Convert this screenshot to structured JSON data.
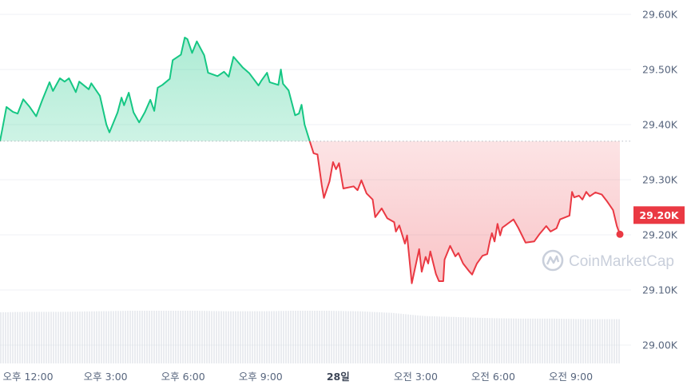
{
  "chart_data": {
    "type": "line",
    "title": "",
    "xlabel": "",
    "ylabel": "",
    "watermark": "CoinMarketCap",
    "reference_price": 29370,
    "current_price_label": "29.20K",
    "colors": {
      "up": "#16c784",
      "down": "#ea3943",
      "grid": "#eff2f5",
      "axis_text": "#58667e",
      "volume": "#d6dae1"
    },
    "grid": true,
    "ylim": [
      28990,
      29615
    ],
    "y_ticks": [
      {
        "value": 29600,
        "label": "29.60K"
      },
      {
        "value": 29500,
        "label": "29.50K"
      },
      {
        "value": 29400,
        "label": "29.40K"
      },
      {
        "value": 29300,
        "label": "29.30K"
      },
      {
        "value": 29200,
        "label": "29.20K"
      },
      {
        "value": 29100,
        "label": "29.10K"
      },
      {
        "value": 29000,
        "label": "29.00K"
      }
    ],
    "x_ticks": [
      {
        "time": "12:00",
        "label": "오후 12:00"
      },
      {
        "time": "15:00",
        "label": "오후 3:00"
      },
      {
        "time": "18:00",
        "label": "오후 6:00"
      },
      {
        "time": "21:00",
        "label": "오후 9:00"
      },
      {
        "time": "24:00",
        "label": "28일",
        "bold": true
      },
      {
        "time": "27:00",
        "label": "오전 3:00"
      },
      {
        "time": "30:00",
        "label": "오전 6:00"
      },
      {
        "time": "33:00",
        "label": "오전 9:00"
      }
    ],
    "series": [
      {
        "points": [
          [
            "10:55",
            29370
          ],
          [
            "11:01",
            29394
          ],
          [
            "11:10",
            29432
          ],
          [
            "11:25",
            29423
          ],
          [
            "11:36",
            29420
          ],
          [
            "11:49",
            29446
          ],
          [
            "12:04",
            29432
          ],
          [
            "12:19",
            29415
          ],
          [
            "12:33",
            29444
          ],
          [
            "12:50",
            29477
          ],
          [
            "12:58",
            29461
          ],
          [
            "13:14",
            29484
          ],
          [
            "13:25",
            29478
          ],
          [
            "13:35",
            29484
          ],
          [
            "13:51",
            29459
          ],
          [
            "13:59",
            29478
          ],
          [
            "14:21",
            29464
          ],
          [
            "14:27",
            29475
          ],
          [
            "14:47",
            29452
          ],
          [
            "15:02",
            29400
          ],
          [
            "15:09",
            29386
          ],
          [
            "15:28",
            29422
          ],
          [
            "15:37",
            29449
          ],
          [
            "15:43",
            29435
          ],
          [
            "15:54",
            29458
          ],
          [
            "16:05",
            29422
          ],
          [
            "16:18",
            29404
          ],
          [
            "16:31",
            29422
          ],
          [
            "16:44",
            29445
          ],
          [
            "16:53",
            29425
          ],
          [
            "17:01",
            29467
          ],
          [
            "17:12",
            29472
          ],
          [
            "17:29",
            29483
          ],
          [
            "17:36",
            29517
          ],
          [
            "17:55",
            29527
          ],
          [
            "18:04",
            29558
          ],
          [
            "18:10",
            29555
          ],
          [
            "18:21",
            29530
          ],
          [
            "18:32",
            29551
          ],
          [
            "18:49",
            29526
          ],
          [
            "18:58",
            29494
          ],
          [
            "19:20",
            29488
          ],
          [
            "19:35",
            29496
          ],
          [
            "19:46",
            29487
          ],
          [
            "19:57",
            29523
          ],
          [
            "20:18",
            29504
          ],
          [
            "20:34",
            29493
          ],
          [
            "20:55",
            29471
          ],
          [
            "21:02",
            29480
          ],
          [
            "21:15",
            29494
          ],
          [
            "21:21",
            29477
          ],
          [
            "21:41",
            29472
          ],
          [
            "21:47",
            29500
          ],
          [
            "21:52",
            29474
          ],
          [
            "22:05",
            29462
          ],
          [
            "22:20",
            29417
          ],
          [
            "22:29",
            29420
          ],
          [
            "22:35",
            29436
          ],
          [
            "22:42",
            29400
          ],
          [
            "22:54",
            29370
          ],
          [
            "23:03",
            29348
          ],
          [
            "23:12",
            29346
          ],
          [
            "23:22",
            29290
          ],
          [
            "23:27",
            29267
          ],
          [
            "23:40",
            29297
          ],
          [
            "23:48",
            29332
          ],
          [
            "23:55",
            29319
          ],
          [
            "00:02",
            29330
          ],
          [
            "00:12",
            29284
          ],
          [
            "00:36",
            29288
          ],
          [
            "00:45",
            29281
          ],
          [
            "00:54",
            29299
          ],
          [
            "01:06",
            29275
          ],
          [
            "01:20",
            29264
          ],
          [
            "01:26",
            29232
          ],
          [
            "01:41",
            29248
          ],
          [
            "01:54",
            29230
          ],
          [
            "02:10",
            29223
          ],
          [
            "02:14",
            29206
          ],
          [
            "02:22",
            29217
          ],
          [
            "02:35",
            29184
          ],
          [
            "02:40",
            29199
          ],
          [
            "02:51",
            29112
          ],
          [
            "02:59",
            29141
          ],
          [
            "03:08",
            29174
          ],
          [
            "03:14",
            29133
          ],
          [
            "03:23",
            29160
          ],
          [
            "03:29",
            29148
          ],
          [
            "03:34",
            29170
          ],
          [
            "03:47",
            29129
          ],
          [
            "03:54",
            29116
          ],
          [
            "04:04",
            29116
          ],
          [
            "04:07",
            29155
          ],
          [
            "04:20",
            29180
          ],
          [
            "04:32",
            29161
          ],
          [
            "04:39",
            29167
          ],
          [
            "04:50",
            29148
          ],
          [
            "05:05",
            29133
          ],
          [
            "05:11",
            29128
          ],
          [
            "05:22",
            29148
          ],
          [
            "05:35",
            29162
          ],
          [
            "05:46",
            29165
          ],
          [
            "05:52",
            29188
          ],
          [
            "05:57",
            29203
          ],
          [
            "06:03",
            29188
          ],
          [
            "06:10",
            29220
          ],
          [
            "06:16",
            29199
          ],
          [
            "06:21",
            29213
          ],
          [
            "06:47",
            29228
          ],
          [
            "06:58",
            29213
          ],
          [
            "07:15",
            29186
          ],
          [
            "07:35",
            29188
          ],
          [
            "07:48",
            29202
          ],
          [
            "08:03",
            29216
          ],
          [
            "08:13",
            29206
          ],
          [
            "08:27",
            29212
          ],
          [
            "08:35",
            29228
          ],
          [
            "08:57",
            29235
          ],
          [
            "09:03",
            29278
          ],
          [
            "09:08",
            29268
          ],
          [
            "09:19",
            29271
          ],
          [
            "09:27",
            29264
          ],
          [
            "09:36",
            29278
          ],
          [
            "09:44",
            29270
          ],
          [
            "09:57",
            29277
          ],
          [
            "10:12",
            29273
          ],
          [
            "10:23",
            29262
          ],
          [
            "10:38",
            29245
          ],
          [
            "10:47",
            29216
          ],
          [
            "10:54",
            29201
          ]
        ]
      }
    ],
    "volume_relative": [
      0.97,
      0.98,
      0.98,
      0.99,
      1.0,
      1.0,
      1.0,
      0.99,
      0.99,
      1.0,
      1.0,
      0.99,
      0.96,
      0.9,
      0.88,
      0.86,
      0.85,
      0.85,
      0.84,
      0.84
    ]
  }
}
